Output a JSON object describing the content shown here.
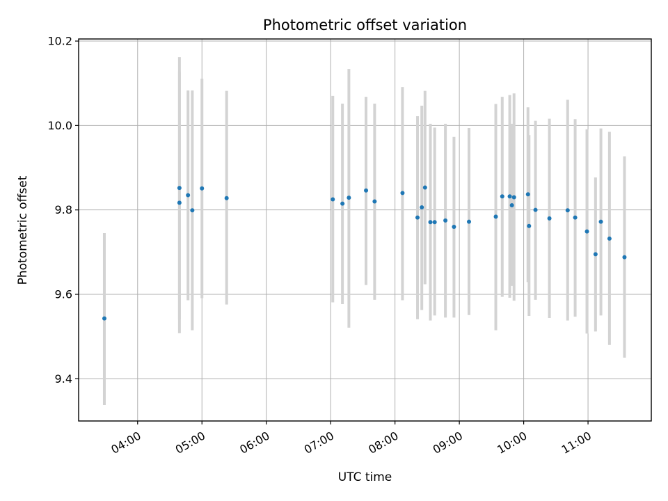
{
  "chart_data": {
    "type": "scatter",
    "title": "Photometric offset variation",
    "xlabel": "UTC time",
    "ylabel": "Photometric offset",
    "xlim": [
      "03:05",
      "11:59"
    ],
    "ylim": [
      9.3,
      10.205
    ],
    "x_ticks": [
      "04:00",
      "05:00",
      "06:00",
      "07:00",
      "08:00",
      "09:00",
      "10:00",
      "11:00"
    ],
    "y_ticks": [
      "9.4",
      "9.6",
      "9.8",
      "10.0",
      "10.2"
    ],
    "grid": true,
    "colors": {
      "point": "#1f77b4",
      "errorbar": "#d3d3d3"
    },
    "series": [
      {
        "points": [
          {
            "x": "03:29",
            "y": 9.543,
            "err_low": 9.338,
            "err_high": 9.745
          },
          {
            "x": "04:39",
            "y": 9.817,
            "err_low": 9.508,
            "err_high": 10.127
          },
          {
            "x": "04:39",
            "y": 9.852,
            "err_low": 9.541,
            "err_high": 10.162
          },
          {
            "x": "04:47",
            "y": 9.835,
            "err_low": 9.586,
            "err_high": 10.083
          },
          {
            "x": "04:51",
            "y": 9.799,
            "err_low": 9.515,
            "err_high": 10.083
          },
          {
            "x": "05:00",
            "y": 9.851,
            "err_low": 9.591,
            "err_high": 10.111
          },
          {
            "x": "05:23",
            "y": 9.828,
            "err_low": 9.576,
            "err_high": 10.082
          },
          {
            "x": "07:02",
            "y": 9.825,
            "err_low": 9.581,
            "err_high": 10.07
          },
          {
            "x": "07:11",
            "y": 9.815,
            "err_low": 9.577,
            "err_high": 10.052
          },
          {
            "x": "07:17",
            "y": 9.829,
            "err_low": 9.521,
            "err_high": 10.134
          },
          {
            "x": "07:33",
            "y": 9.846,
            "err_low": 9.622,
            "err_high": 10.068
          },
          {
            "x": "07:41",
            "y": 9.82,
            "err_low": 9.587,
            "err_high": 10.052
          },
          {
            "x": "08:07",
            "y": 9.84,
            "err_low": 9.586,
            "err_high": 10.091
          },
          {
            "x": "08:21",
            "y": 9.782,
            "err_low": 9.541,
            "err_high": 10.022
          },
          {
            "x": "08:25",
            "y": 9.806,
            "err_low": 9.563,
            "err_high": 10.047
          },
          {
            "x": "08:28",
            "y": 9.853,
            "err_low": 9.624,
            "err_high": 10.082
          },
          {
            "x": "08:33",
            "y": 9.771,
            "err_low": 9.538,
            "err_high": 10.004
          },
          {
            "x": "08:37",
            "y": 9.771,
            "err_low": 9.55,
            "err_high": 9.995
          },
          {
            "x": "08:47",
            "y": 9.775,
            "err_low": 9.545,
            "err_high": 10.004
          },
          {
            "x": "08:55",
            "y": 9.76,
            "err_low": 9.545,
            "err_high": 9.973
          },
          {
            "x": "09:09",
            "y": 9.772,
            "err_low": 9.551,
            "err_high": 9.994
          },
          {
            "x": "09:34",
            "y": 9.784,
            "err_low": 9.515,
            "err_high": 10.051
          },
          {
            "x": "09:40",
            "y": 9.832,
            "err_low": 9.594,
            "err_high": 10.068
          },
          {
            "x": "09:47",
            "y": 9.832,
            "err_low": 9.592,
            "err_high": 10.072
          },
          {
            "x": "09:49",
            "y": 9.811,
            "err_low": 9.62,
            "err_high": 10.004
          },
          {
            "x": "09:51",
            "y": 9.83,
            "err_low": 9.585,
            "err_high": 10.076
          },
          {
            "x": "10:04",
            "y": 9.837,
            "err_low": 9.629,
            "err_high": 10.043
          },
          {
            "x": "10:05",
            "y": 9.762,
            "err_low": 9.549,
            "err_high": 9.977
          },
          {
            "x": "10:11",
            "y": 9.8,
            "err_low": 9.587,
            "err_high": 10.011
          },
          {
            "x": "10:24",
            "y": 9.78,
            "err_low": 9.544,
            "err_high": 10.016
          },
          {
            "x": "10:41",
            "y": 9.799,
            "err_low": 9.538,
            "err_high": 10.061
          },
          {
            "x": "10:48",
            "y": 9.782,
            "err_low": 9.547,
            "err_high": 10.015
          },
          {
            "x": "10:59",
            "y": 9.749,
            "err_low": 9.507,
            "err_high": 9.991
          },
          {
            "x": "11:07",
            "y": 9.695,
            "err_low": 9.512,
            "err_high": 9.877
          },
          {
            "x": "11:12",
            "y": 9.772,
            "err_low": 9.55,
            "err_high": 9.993
          },
          {
            "x": "11:20",
            "y": 9.732,
            "err_low": 9.48,
            "err_high": 9.985
          },
          {
            "x": "11:34",
            "y": 9.688,
            "err_low": 9.45,
            "err_high": 9.927
          }
        ]
      }
    ]
  }
}
